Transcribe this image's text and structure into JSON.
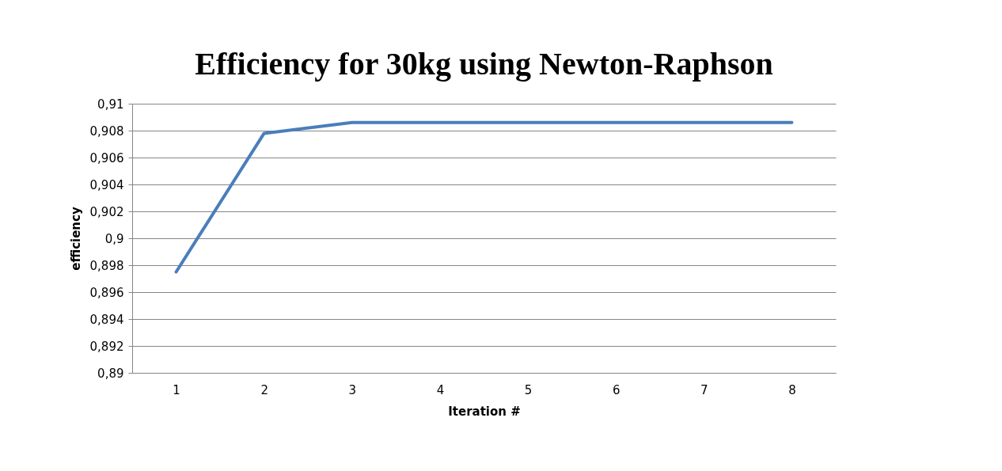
{
  "chart_data": {
    "type": "line",
    "title": "Efficiency for 30kg using Newton-Raphson",
    "xlabel": "Iteration #",
    "ylabel": "efficiency",
    "categories": [
      "1",
      "2",
      "3",
      "4",
      "5",
      "6",
      "7",
      "8"
    ],
    "series": [
      {
        "color": "#4a7ebb",
        "values": [
          0.8975,
          0.9078,
          0.9086,
          0.9086,
          0.9086,
          0.9086,
          0.9086,
          0.9086
        ]
      }
    ],
    "ylim": [
      0.89,
      0.91
    ],
    "yticks": [
      {
        "value": 0.89,
        "label": "0,89"
      },
      {
        "value": 0.892,
        "label": "0,892"
      },
      {
        "value": 0.894,
        "label": "0,894"
      },
      {
        "value": 0.896,
        "label": "0,896"
      },
      {
        "value": 0.898,
        "label": "0,898"
      },
      {
        "value": 0.9,
        "label": "0,9"
      },
      {
        "value": 0.902,
        "label": "0,902"
      },
      {
        "value": 0.904,
        "label": "0,904"
      },
      {
        "value": 0.906,
        "label": "0,906"
      },
      {
        "value": 0.908,
        "label": "0,908"
      },
      {
        "value": 0.91,
        "label": "0,91"
      }
    ],
    "grid": "y",
    "marker": "none",
    "line_style": "solid"
  }
}
